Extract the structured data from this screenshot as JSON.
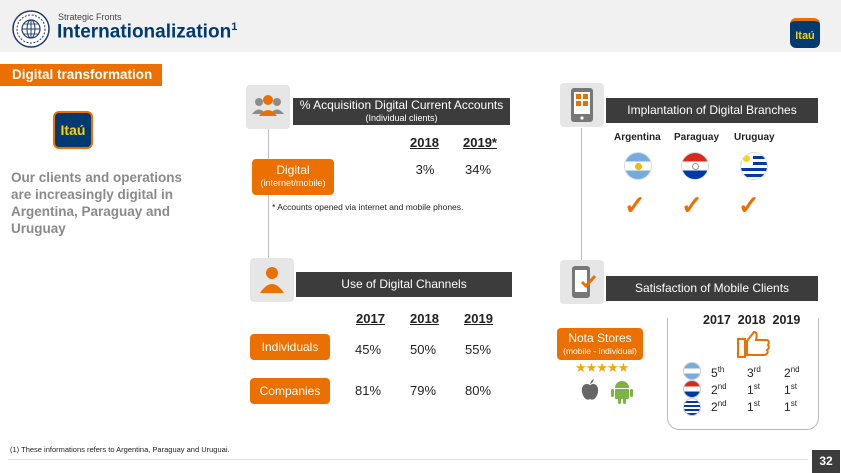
{
  "header": {
    "kicker": "Strategic Fronts",
    "title": "Internationalization",
    "title_sup": "1",
    "logo_text": "Itaú"
  },
  "section_label": "Digital transformation",
  "left": {
    "logo_text": "Itaú",
    "statement": "Our clients and operations are increasingly digital in Argentina, Paraguay and Uruguay"
  },
  "acquisition": {
    "title": "% Acquisition Digital Current Accounts",
    "subtitle": "(Individual clients)",
    "years": [
      "2018",
      "2019*"
    ],
    "row_label": "Digital",
    "row_sublabel": "(internet/mobile)",
    "values": [
      "3%",
      "34%"
    ],
    "footnote": "* Accounts opened via internet and mobile phones."
  },
  "branches": {
    "title": "Implantation of Digital Branches",
    "countries": [
      "Argentina",
      "Paraguay",
      "Uruguay"
    ],
    "check_mark": "✓"
  },
  "channels": {
    "title": "Use of Digital Channels",
    "years": [
      "2017",
      "2018",
      "2019"
    ],
    "rows": [
      {
        "label": "Individuals",
        "values": [
          "45%",
          "50%",
          "55%"
        ]
      },
      {
        "label": "Companies",
        "values": [
          "81%",
          "79%",
          "80%"
        ]
      }
    ]
  },
  "satisfaction": {
    "title": "Satisfaction of Mobile  Clients",
    "store_label": "Nota Stores",
    "store_sublabel": "(mobile - individual)",
    "stars": "★★★★★",
    "years": [
      "2017",
      "2018",
      "2019"
    ],
    "ranks": [
      [
        {
          "n": "5",
          "s": "th"
        },
        {
          "n": "3",
          "s": "rd"
        },
        {
          "n": "2",
          "s": "nd"
        }
      ],
      [
        {
          "n": "2",
          "s": "nd"
        },
        {
          "n": "1",
          "s": "st"
        },
        {
          "n": "1",
          "s": "st"
        }
      ],
      [
        {
          "n": "2",
          "s": "nd"
        },
        {
          "n": "1",
          "s": "st"
        },
        {
          "n": "1",
          "s": "st"
        }
      ]
    ]
  },
  "footnote": "(1)  These informations refers to Argentina, Paraguay and Uruguai.",
  "page_number": "32",
  "colors": {
    "accent": "#ec7000",
    "dark": "#3c3c3c",
    "navy": "#003a70"
  }
}
